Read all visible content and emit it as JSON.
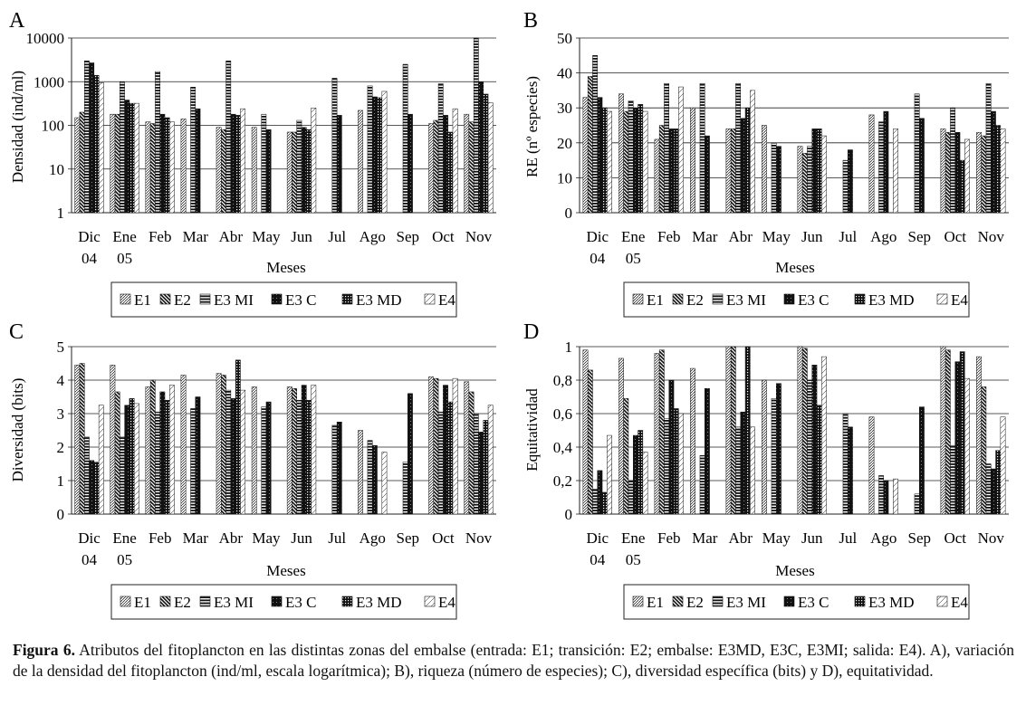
{
  "series_names": [
    "E1",
    "E2",
    "E3 MI",
    "E3 C",
    "E3 MD",
    "E4"
  ],
  "months": [
    "Dic 04",
    "Ene 05",
    "Feb",
    "Mar",
    "Abr",
    "May",
    "Jun",
    "Jul",
    "Ago",
    "Sep",
    "Oct",
    "Nov"
  ],
  "xlabel": "Meses",
  "caption": {
    "label": "Figura 6.",
    "text": "Atributos del fitoplancton en las distintas zonas del embalse (entrada: E1; transición: E2; embalse: E3MD, E3C, E3MI; salida: E4). A), variación de la densidad del fitoplancton (ind/ml, escala logarítmica); B), riqueza (número de especies); C), diversidad específica (bits) y D), equitatividad."
  },
  "chart_data": [
    {
      "panel": "A",
      "type": "bar",
      "scale": "log",
      "ylabel": "Densidad (ind/ml)",
      "ylim": [
        1,
        10000
      ],
      "yticks": [
        1,
        10,
        100,
        1000,
        10000
      ],
      "ytick_labels": [
        "1",
        "10",
        "100",
        "1000",
        "10000"
      ],
      "categories": [
        "Dic 04",
        "Ene 05",
        "Feb",
        "Mar",
        "Abr",
        "May",
        "Jun",
        "Jul",
        "Ago",
        "Sep",
        "Oct",
        "Nov"
      ],
      "series": [
        {
          "name": "E1",
          "values": [
            150,
            180,
            120,
            140,
            90,
            90,
            70,
            null,
            220,
            null,
            110,
            180
          ]
        },
        {
          "name": "E2",
          "values": [
            200,
            180,
            110,
            null,
            80,
            null,
            70,
            null,
            null,
            null,
            130,
            120
          ]
        },
        {
          "name": "E3 MI",
          "values": [
            3000,
            1000,
            1700,
            750,
            3000,
            180,
            130,
            1200,
            800,
            2500,
            900,
            10000
          ]
        },
        {
          "name": "E3 C",
          "values": [
            2700,
            380,
            180,
            240,
            180,
            80,
            90,
            170,
            450,
            180,
            170,
            1000
          ]
        },
        {
          "name": "E3 MD",
          "values": [
            1400,
            320,
            150,
            null,
            170,
            null,
            80,
            null,
            430,
            null,
            70,
            520
          ]
        },
        {
          "name": "E4",
          "values": [
            950,
            320,
            120,
            null,
            240,
            null,
            250,
            null,
            600,
            null,
            240,
            330
          ]
        }
      ]
    },
    {
      "panel": "B",
      "type": "bar",
      "scale": "linear",
      "ylabel": "RE (nº especies)",
      "ylim": [
        0,
        50
      ],
      "yticks": [
        0,
        10,
        20,
        30,
        40,
        50
      ],
      "ytick_labels": [
        "0",
        "10",
        "20",
        "30",
        "40",
        "50"
      ],
      "categories": [
        "Dic 04",
        "Ene 05",
        "Feb",
        "Mar",
        "Abr",
        "May",
        "Jun",
        "Jul",
        "Ago",
        "Sep",
        "Oct",
        "Nov"
      ],
      "series": [
        {
          "name": "E1",
          "values": [
            33,
            34,
            21,
            30,
            24,
            25,
            19,
            null,
            28,
            null,
            24,
            23
          ]
        },
        {
          "name": "E2",
          "values": [
            39,
            29,
            25,
            null,
            24,
            null,
            17,
            null,
            null,
            null,
            23,
            22
          ]
        },
        {
          "name": "E3 MI",
          "values": [
            45,
            32,
            37,
            37,
            37,
            20,
            19,
            15,
            26,
            34,
            30,
            37
          ]
        },
        {
          "name": "E3 C",
          "values": [
            33,
            30,
            24,
            22,
            27,
            19,
            24,
            18,
            29,
            27,
            23,
            29
          ]
        },
        {
          "name": "E3 MD",
          "values": [
            30,
            31,
            24,
            null,
            30,
            null,
            24,
            null,
            null,
            null,
            15,
            25
          ]
        },
        {
          "name": "E4",
          "values": [
            29,
            29,
            36,
            null,
            35,
            null,
            22,
            null,
            24,
            null,
            21,
            24
          ]
        }
      ]
    },
    {
      "panel": "C",
      "type": "bar",
      "scale": "linear",
      "ylabel": "Diversidad (bits)",
      "ylim": [
        0,
        5
      ],
      "yticks": [
        0,
        1,
        2,
        3,
        4,
        5
      ],
      "ytick_labels": [
        "0",
        "1",
        "2",
        "3",
        "4",
        "5"
      ],
      "categories": [
        "Dic 04",
        "Ene 05",
        "Feb",
        "Mar",
        "Abr",
        "May",
        "Jun",
        "Jul",
        "Ago",
        "Sep",
        "Oct",
        "Nov"
      ],
      "series": [
        {
          "name": "E1",
          "values": [
            4.45,
            4.45,
            3.8,
            4.15,
            4.2,
            3.8,
            3.8,
            null,
            2.5,
            null,
            4.1,
            3.95
          ]
        },
        {
          "name": "E2",
          "values": [
            4.5,
            3.65,
            4.0,
            null,
            4.15,
            null,
            3.75,
            null,
            null,
            null,
            4.05,
            3.65
          ]
        },
        {
          "name": "E3 MI",
          "values": [
            2.3,
            2.3,
            3.05,
            3.15,
            3.7,
            3.2,
            3.4,
            2.65,
            2.2,
            1.55,
            3.05,
            3.0
          ]
        },
        {
          "name": "E3 C",
          "values": [
            1.6,
            3.25,
            3.65,
            3.5,
            3.45,
            3.35,
            3.85,
            2.75,
            2.05,
            3.6,
            3.85,
            2.45
          ]
        },
        {
          "name": "E3 MD",
          "values": [
            1.55,
            3.45,
            3.4,
            null,
            4.6,
            null,
            3.4,
            null,
            null,
            null,
            3.35,
            2.8
          ]
        },
        {
          "name": "E4",
          "values": [
            3.25,
            3.3,
            3.85,
            null,
            3.7,
            null,
            3.85,
            null,
            1.85,
            null,
            4.05,
            3.25
          ]
        }
      ]
    },
    {
      "panel": "D",
      "type": "bar",
      "scale": "linear",
      "ylabel": "Equitatividad",
      "ylim": [
        0,
        1
      ],
      "yticks": [
        0,
        0.2,
        0.4,
        0.6,
        0.8,
        1
      ],
      "ytick_labels": [
        "0",
        "0,2",
        "0,4",
        "0,6",
        "0,8",
        "1"
      ],
      "categories": [
        "Dic 04",
        "Ene 05",
        "Feb",
        "Mar",
        "Abr",
        "May",
        "Jun",
        "Jul",
        "Ago",
        "Sep",
        "Oct",
        "Nov"
      ],
      "series": [
        {
          "name": "E1",
          "values": [
            0.98,
            0.93,
            0.96,
            0.87,
            1.0,
            0.8,
            1.0,
            null,
            0.58,
            null,
            1.0,
            0.94
          ]
        },
        {
          "name": "E2",
          "values": [
            0.86,
            0.69,
            0.98,
            null,
            1.0,
            null,
            0.99,
            null,
            null,
            null,
            0.98,
            0.76
          ]
        },
        {
          "name": "E3 MI",
          "values": [
            0.15,
            0.2,
            0.57,
            0.35,
            0.52,
            0.69,
            0.8,
            0.6,
            0.23,
            0.12,
            0.41,
            0.3
          ]
        },
        {
          "name": "E3 C",
          "values": [
            0.26,
            0.47,
            0.8,
            0.75,
            0.61,
            0.78,
            0.89,
            0.52,
            0.2,
            0.64,
            0.91,
            0.27
          ]
        },
        {
          "name": "E3 MD",
          "values": [
            0.13,
            0.5,
            0.63,
            null,
            1.0,
            null,
            0.65,
            null,
            null,
            null,
            0.97,
            0.38
          ]
        },
        {
          "name": "E4",
          "values": [
            0.47,
            0.37,
            0.6,
            null,
            0.52,
            null,
            0.94,
            null,
            0.21,
            null,
            0.81,
            0.58
          ]
        }
      ]
    }
  ]
}
